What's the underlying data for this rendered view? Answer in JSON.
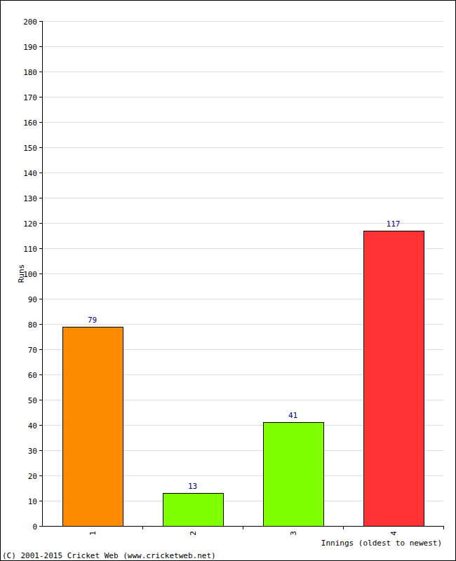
{
  "chart_data": {
    "type": "bar",
    "x_label": "Innings (oldest to newest)",
    "y_label": "Runs",
    "annotations": [
      "(C) 2001-2015 Cricket Web (www.cricketweb.net)"
    ],
    "categories": [
      "1",
      "2",
      "3",
      "4"
    ],
    "values": [
      79,
      13,
      41,
      117
    ],
    "colors": [
      "#ff8c00",
      "#80ff00",
      "#80ff00",
      "#ff3333"
    ],
    "ylim": [
      0,
      200
    ],
    "yticks": [
      0,
      10,
      20,
      30,
      40,
      50,
      60,
      70,
      80,
      90,
      100,
      110,
      120,
      130,
      140,
      150,
      160,
      170,
      180,
      190,
      200
    ],
    "grid": true,
    "data_labels": true
  }
}
